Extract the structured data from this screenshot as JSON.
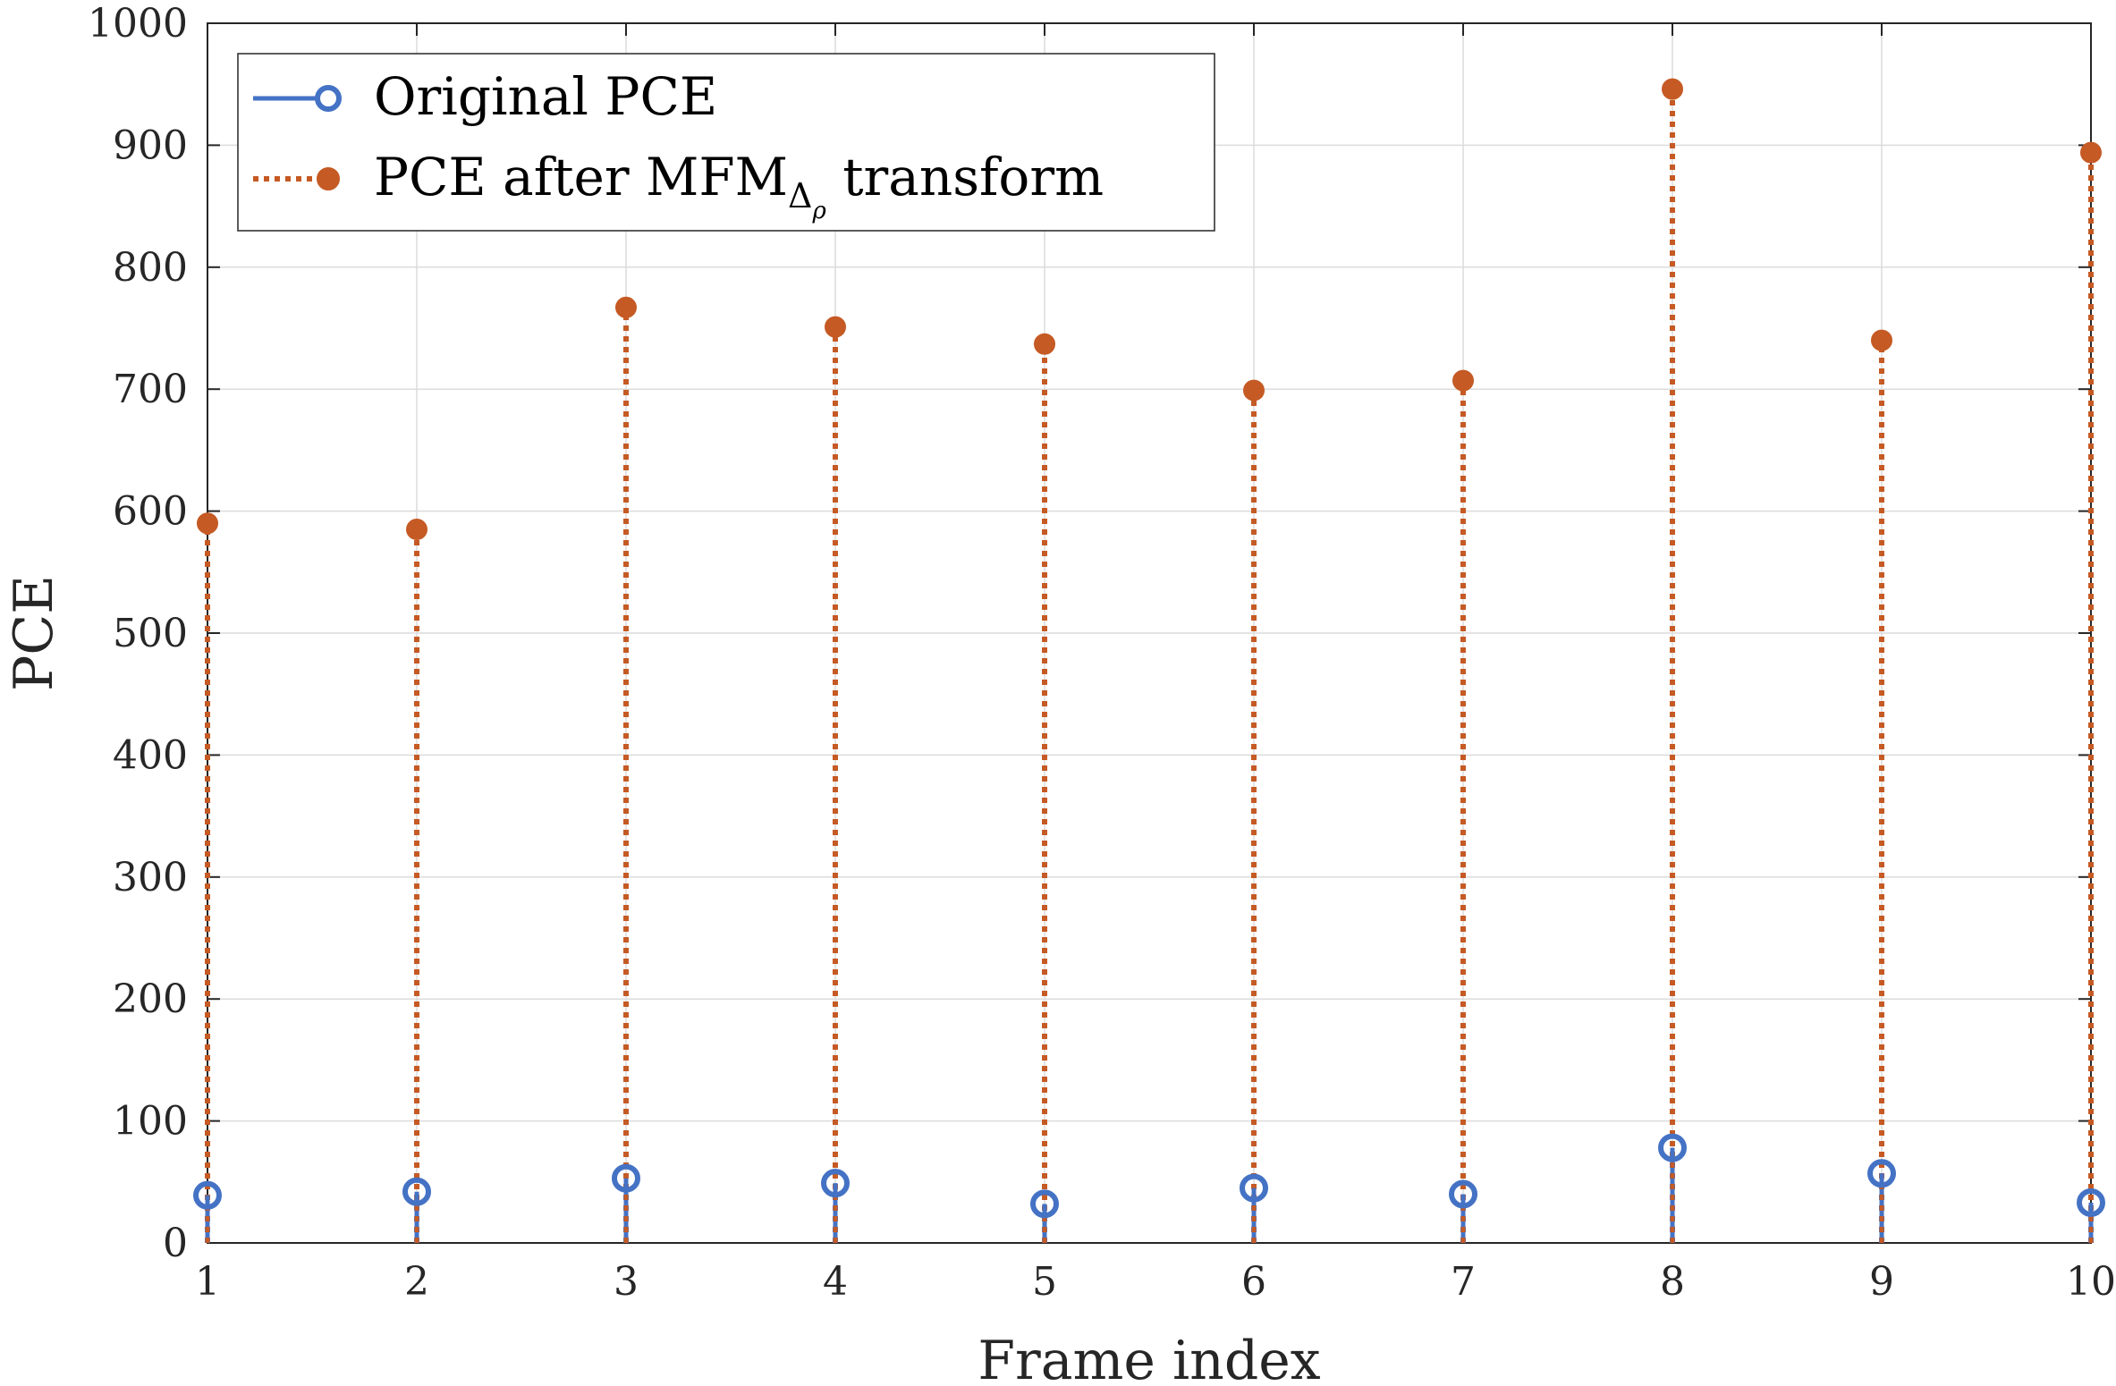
{
  "chart_data": {
    "type": "stem",
    "x": [
      1,
      2,
      3,
      4,
      5,
      6,
      7,
      8,
      9,
      10
    ],
    "series": [
      {
        "name": "Original PCE",
        "color": "#4472C4",
        "marker": "open-circle",
        "line_style": "solid",
        "values": [
          39,
          42,
          53,
          49,
          32,
          45,
          40,
          78,
          57,
          33
        ]
      },
      {
        "name_main": "PCE after MFM",
        "name_sub": "Δ",
        "name_subsub": "ρ",
        "name_suffix": " transform",
        "color": "#C55A24",
        "marker": "filled-dot",
        "line_style": "dotted",
        "values": [
          590,
          585,
          767,
          751,
          737,
          699,
          707,
          946,
          740,
          894
        ]
      }
    ],
    "xlabel": "Frame index",
    "ylabel": "PCE",
    "xlim": [
      1,
      10
    ],
    "ylim": [
      0,
      1000
    ],
    "x_ticks": [
      "1",
      "2",
      "3",
      "4",
      "5",
      "6",
      "7",
      "8",
      "9",
      "10"
    ],
    "y_ticks": [
      "0",
      "100",
      "200",
      "300",
      "400",
      "500",
      "600",
      "700",
      "800",
      "900",
      "1000"
    ],
    "grid": true,
    "legend_position": "top-left"
  }
}
